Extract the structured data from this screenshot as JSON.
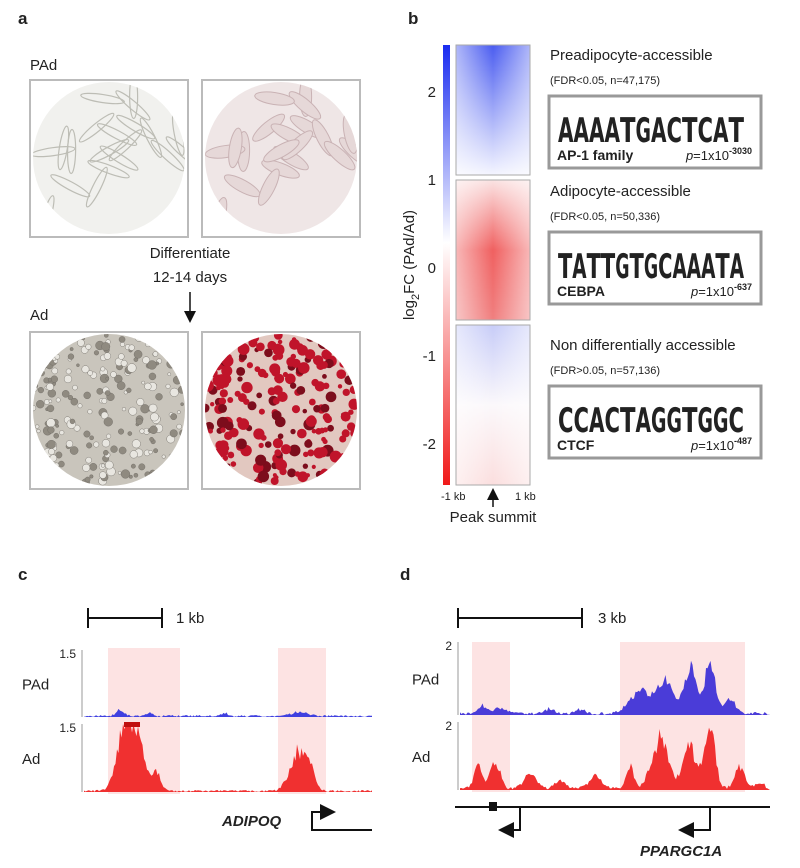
{
  "panels": {
    "a": {
      "label": "a",
      "top_group": "PAd",
      "arrow_text": [
        "Differentiate",
        "12-14 days"
      ],
      "bottom_group": "Ad"
    },
    "b": {
      "label": "b",
      "axis_label": {
        "prefix": "log",
        "subscript": "2",
        "suffix": "FC (PAd/Ad)"
      },
      "ticks": [
        2,
        1,
        0,
        -1,
        -2
      ],
      "x_labels": [
        "-1 kb",
        "1 kb"
      ],
      "x_title": "Peak summit",
      "groups": [
        {
          "title": "Preadipocyte-accessible",
          "stats": "(FDR<0.05, n=47,175)",
          "motif": "AP-1 family",
          "p_prefix": "p",
          "p_base": "=1x10",
          "p_exp": "-3030",
          "logo": [
            "A",
            "A",
            "A",
            "A",
            "T",
            "G",
            "A",
            "C",
            "T",
            "C",
            "A",
            "T"
          ]
        },
        {
          "title": "Adipocyte-accessible",
          "stats": "(FDR<0.05, n=50,336)",
          "motif": "CEBPA",
          "p_prefix": "p",
          "p_base": "=1x10",
          "p_exp": "-637",
          "logo": [
            "T",
            "A",
            "T",
            "T",
            "G",
            "T",
            "G",
            "C",
            "A",
            "A",
            "A",
            "T",
            "A"
          ]
        },
        {
          "title": "Non differentially accessible",
          "stats": "(FDR>0.05, n=57,136)",
          "motif": "CTCF",
          "p_prefix": "p",
          "p_base": "=1x10",
          "p_exp": "-487",
          "logo": [
            "C",
            "C",
            "A",
            "C",
            "T",
            "A",
            "G",
            "G",
            "T",
            "G",
            "G",
            "C"
          ]
        }
      ]
    },
    "c": {
      "label": "c",
      "scale_bar": "1 kb",
      "tracks": [
        {
          "name": "PAd",
          "max": "1.5"
        },
        {
          "name": "Ad",
          "max": "1.5"
        }
      ],
      "gene": "ADIPOQ"
    },
    "d": {
      "label": "d",
      "scale_bar": "3 kb",
      "tracks": [
        {
          "name": "PAd",
          "max": "2"
        },
        {
          "name": "Ad",
          "max": "2"
        }
      ],
      "gene": "PPARGC1A"
    }
  }
}
